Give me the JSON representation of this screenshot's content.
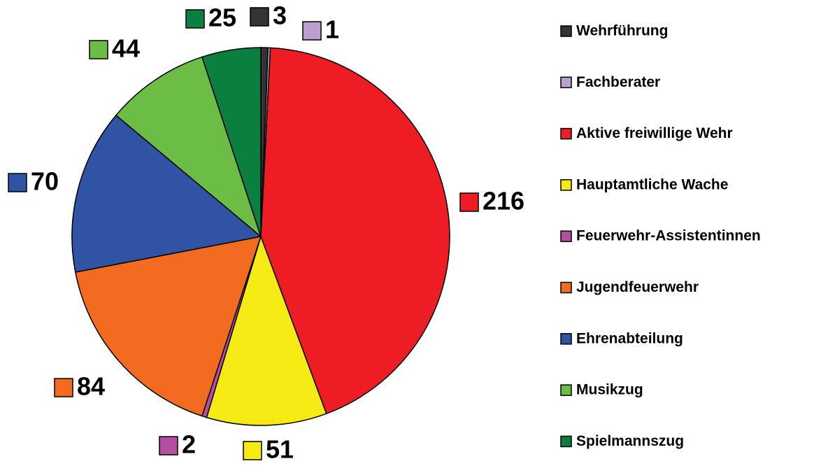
{
  "chart_data": {
    "type": "pie",
    "categories": [
      "Wehrführung",
      "Fachberater",
      "Aktive freiwillige Wehr",
      "Hauptamtliche Wache",
      "Feuerwehr-Assistentinnen",
      "Jugendfeuerwehr",
      "Ehrenabteilung",
      "Musikzug",
      "Spielmannszug"
    ],
    "values": [
      3,
      1,
      216,
      51,
      2,
      84,
      70,
      44,
      25
    ],
    "colors": [
      "#333333",
      "#b9a0cf",
      "#ee1d24",
      "#f5ea14",
      "#b54ea0",
      "#f26b21",
      "#3153a4",
      "#6cbd45",
      "#0b7f3f"
    ],
    "legend": "right"
  }
}
